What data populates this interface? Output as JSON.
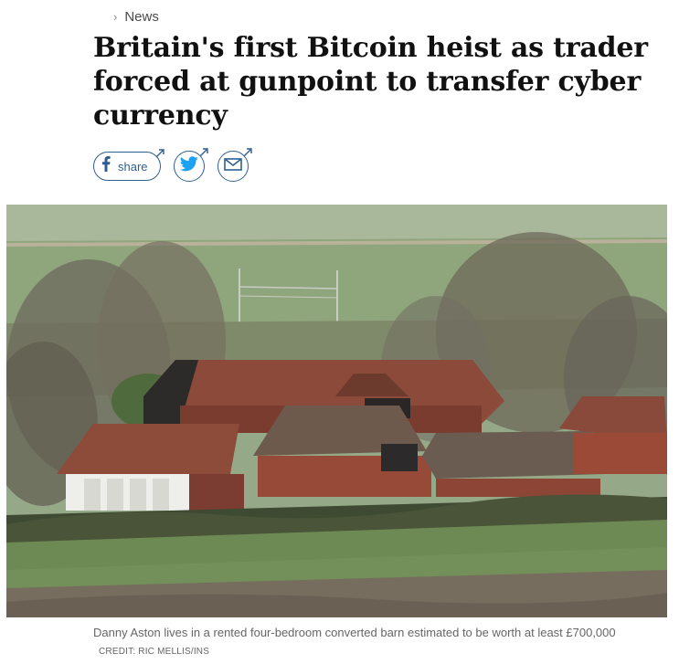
{
  "breadcrumb": {
    "section": "News"
  },
  "article": {
    "headline": "Britain's first Bitcoin heist as trader forced at gunpoint to transfer cyber currency"
  },
  "share": {
    "facebook_label": "share"
  },
  "image": {
    "caption": "Danny Aston lives in a rented four-bedroom converted barn estimated to be worth at least £700,000",
    "credit": "CREDIT: RIC MELLIS/INS"
  },
  "colors": {
    "share_blue": "#2f5f8f",
    "twitter_blue": "#1da1f2",
    "text_dark": "#111111",
    "caption_gray": "#666666"
  }
}
